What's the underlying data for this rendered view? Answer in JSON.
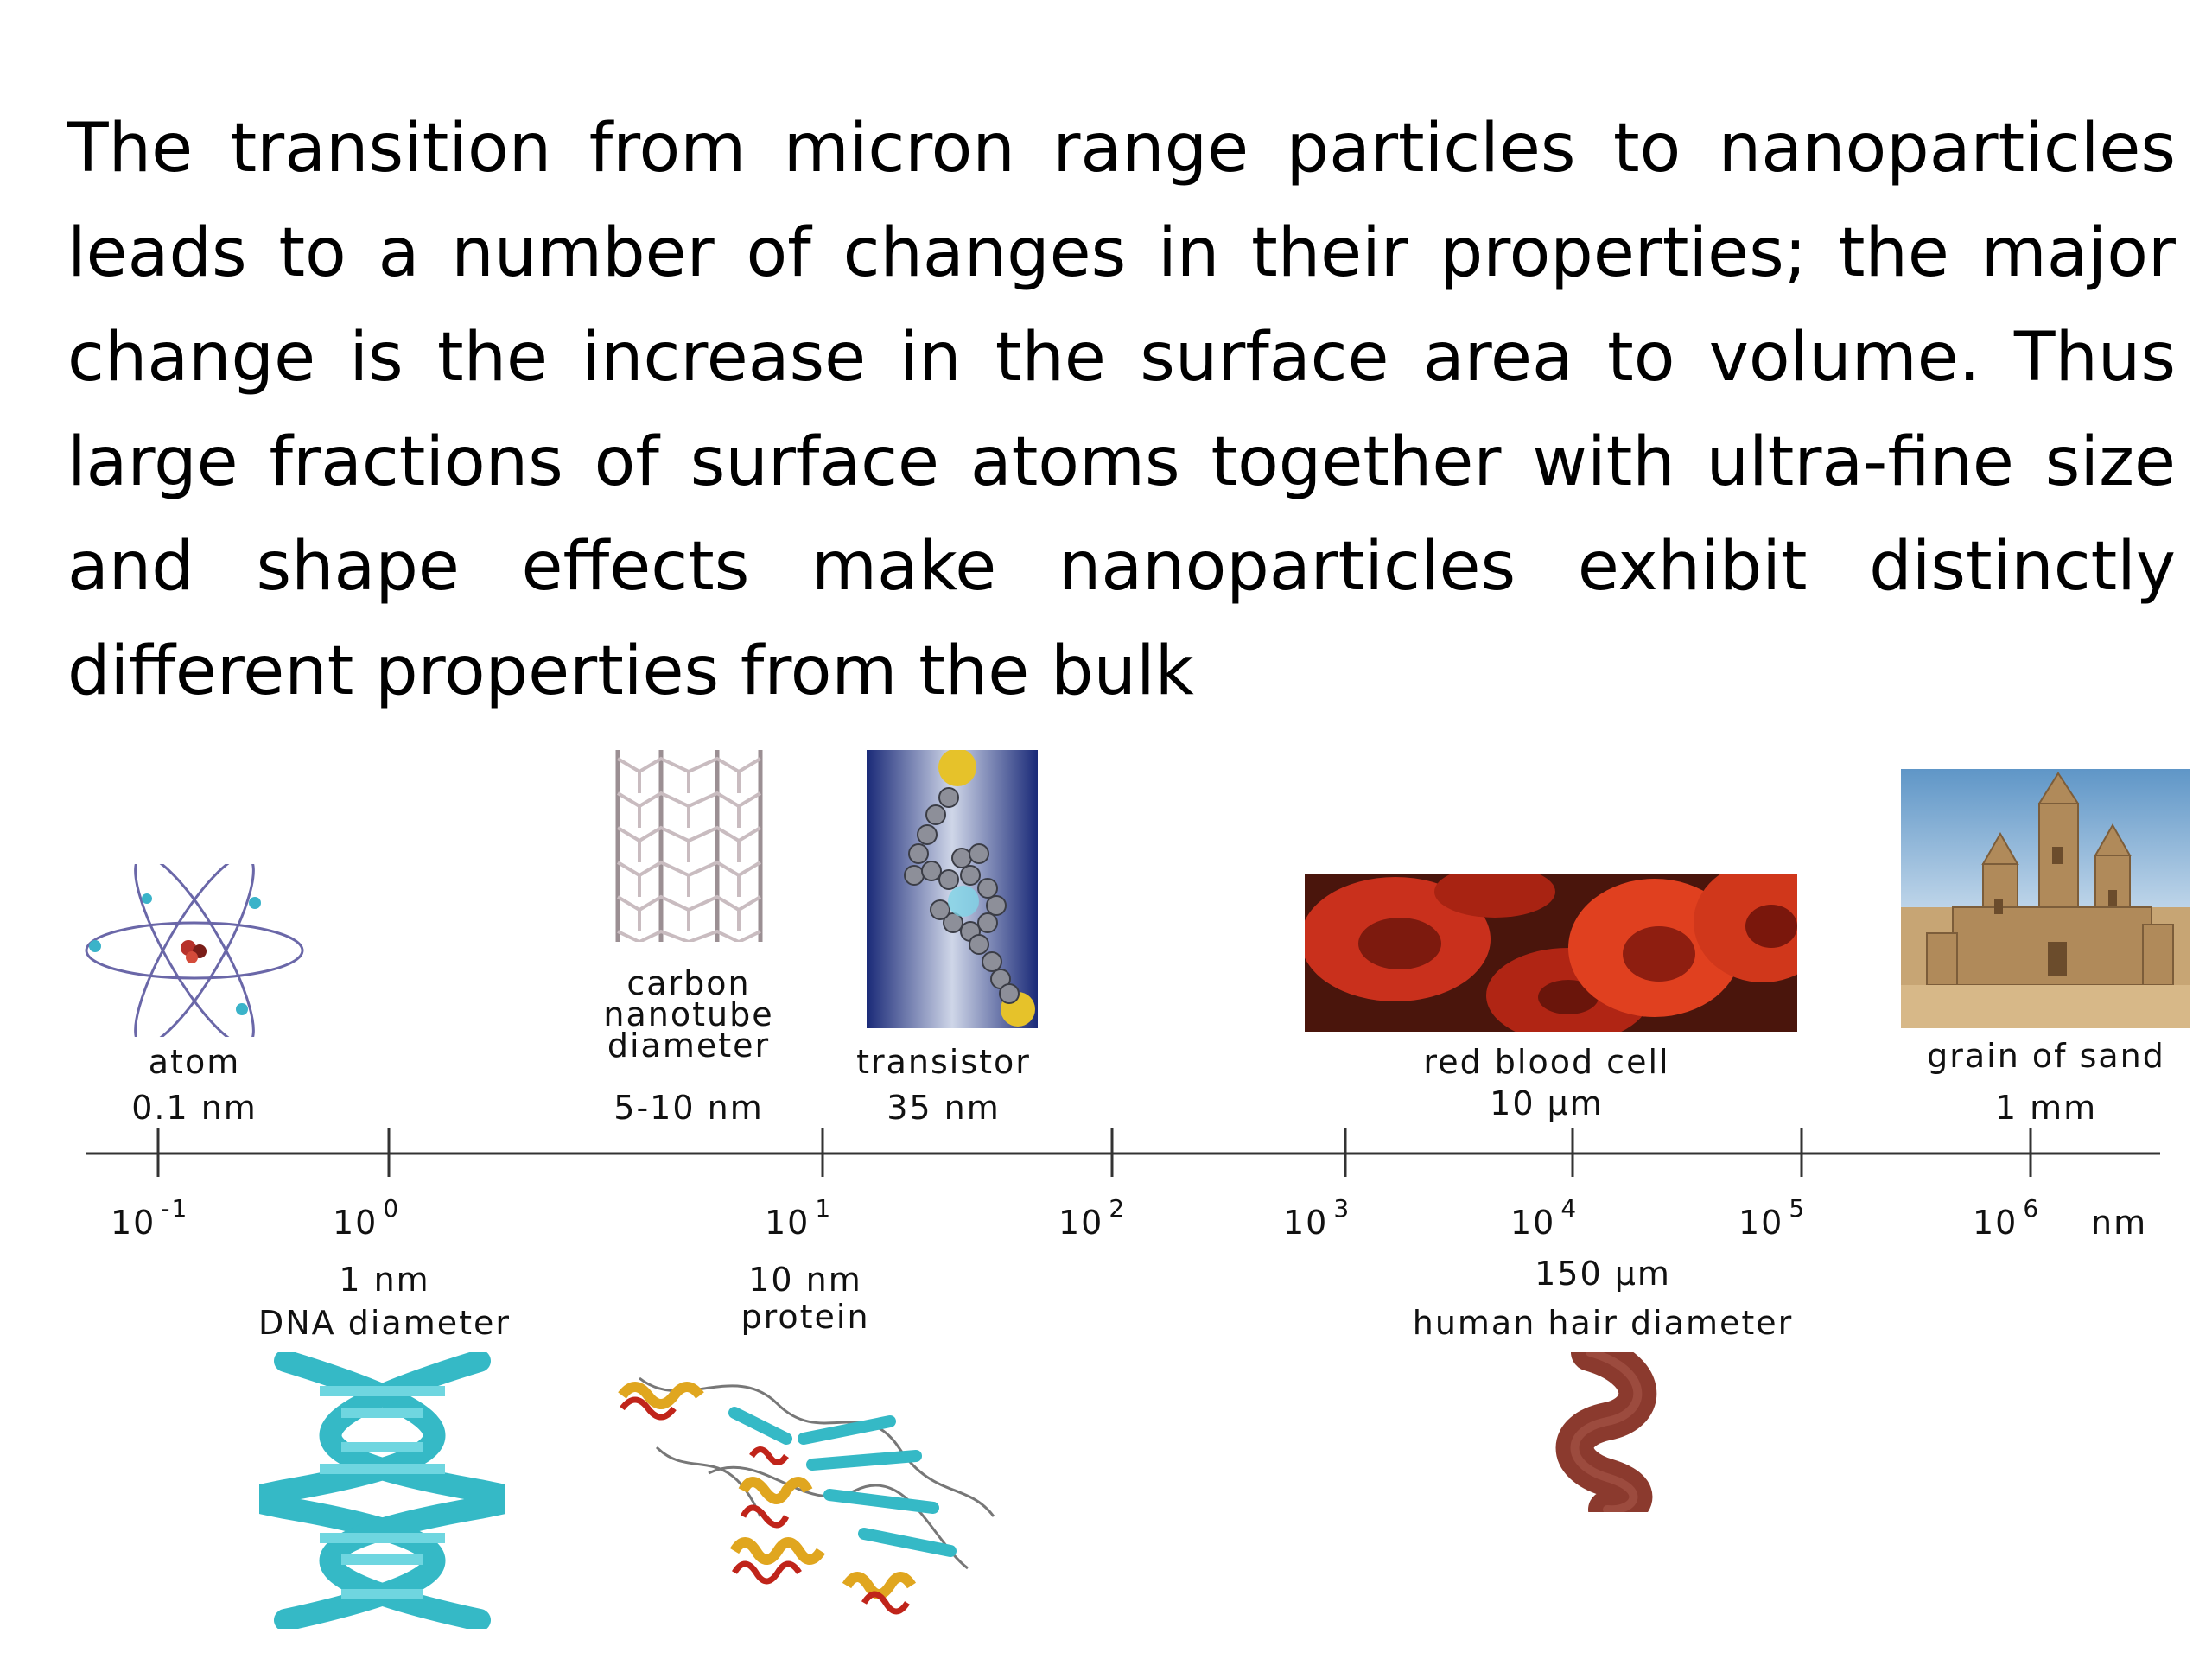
{
  "paragraph": "The transition from micron range particles to nanoparticles leads to a number of changes in their properties; the major change is the increase in the surface area to volume. Thus large fractions of surface atoms together with ultra-fine size and shape effects make nanoparticles exhibit distinctly different properties from the bulk",
  "scale": {
    "ticks": [
      {
        "base": "10",
        "exp": "-1"
      },
      {
        "base": "10",
        "exp": "0"
      },
      {
        "base": "10",
        "exp": "1"
      },
      {
        "base": "10",
        "exp": "2"
      },
      {
        "base": "10",
        "exp": "3"
      },
      {
        "base": "10",
        "exp": "4"
      },
      {
        "base": "10",
        "exp": "5"
      },
      {
        "base": "10",
        "exp": "6"
      }
    ],
    "unit": "nm"
  },
  "top_items": {
    "atom": {
      "name": "atom",
      "size": "0.1 nm"
    },
    "nanotube": {
      "name_lines": [
        "carbon",
        "nanotube",
        "diameter"
      ],
      "size": "5-10 nm"
    },
    "transistor": {
      "name": "transistor",
      "size": "35 nm"
    },
    "blood_cell": {
      "name": "red blood cell",
      "size": "10 µm"
    },
    "sand": {
      "name": "grain of sand",
      "size": "1 mm"
    }
  },
  "bottom_items": {
    "dna": {
      "size": "1 nm",
      "name": "DNA diameter"
    },
    "protein": {
      "size": "10 nm",
      "name": "protein"
    },
    "hair": {
      "size": "150 µm",
      "name": "human hair diameter"
    }
  },
  "colors": {
    "dna": "#35b9c6",
    "blood": "#c9301c",
    "hair": "#8b3a2e",
    "transistor_bg": "#1f2f7a",
    "sky": "#7fb0d6",
    "sand": "#c7a574"
  }
}
